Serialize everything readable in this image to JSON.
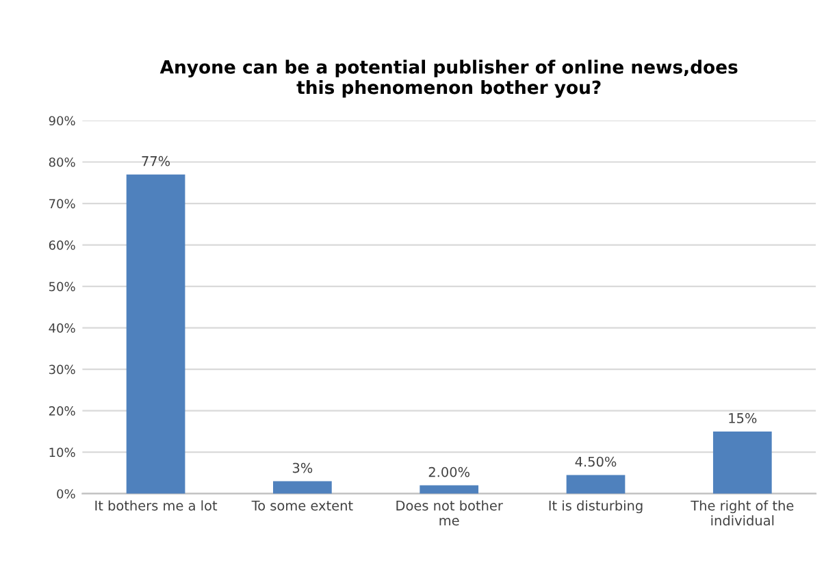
{
  "chart_data": {
    "type": "bar",
    "title": "Anyone can be a potential publisher of online news,does\nthis phenomenon bother you?",
    "categories": [
      "It bothers me a lot",
      "To some extent",
      "Does not bother\nme",
      "It is disturbing",
      "The right of the\nindividual"
    ],
    "values": [
      77,
      3,
      2.0,
      4.5,
      15
    ],
    "value_labels": [
      "77%",
      "3%",
      "2.00%",
      "4.50%",
      "15%"
    ],
    "color": "#4f81bd",
    "ylim": [
      0,
      90
    ],
    "yticks": [
      {
        "value": 0,
        "label": "0%"
      },
      {
        "value": 10,
        "label": "10%"
      },
      {
        "value": 20,
        "label": "20%"
      },
      {
        "value": 30,
        "label": "30%"
      },
      {
        "value": 40,
        "label": "40%"
      },
      {
        "value": 50,
        "label": "50%"
      },
      {
        "value": 60,
        "label": "60%"
      },
      {
        "value": 70,
        "label": "70%"
      },
      {
        "value": 80,
        "label": "80%"
      },
      {
        "value": 90,
        "label": "90%"
      }
    ],
    "grid": "y"
  }
}
